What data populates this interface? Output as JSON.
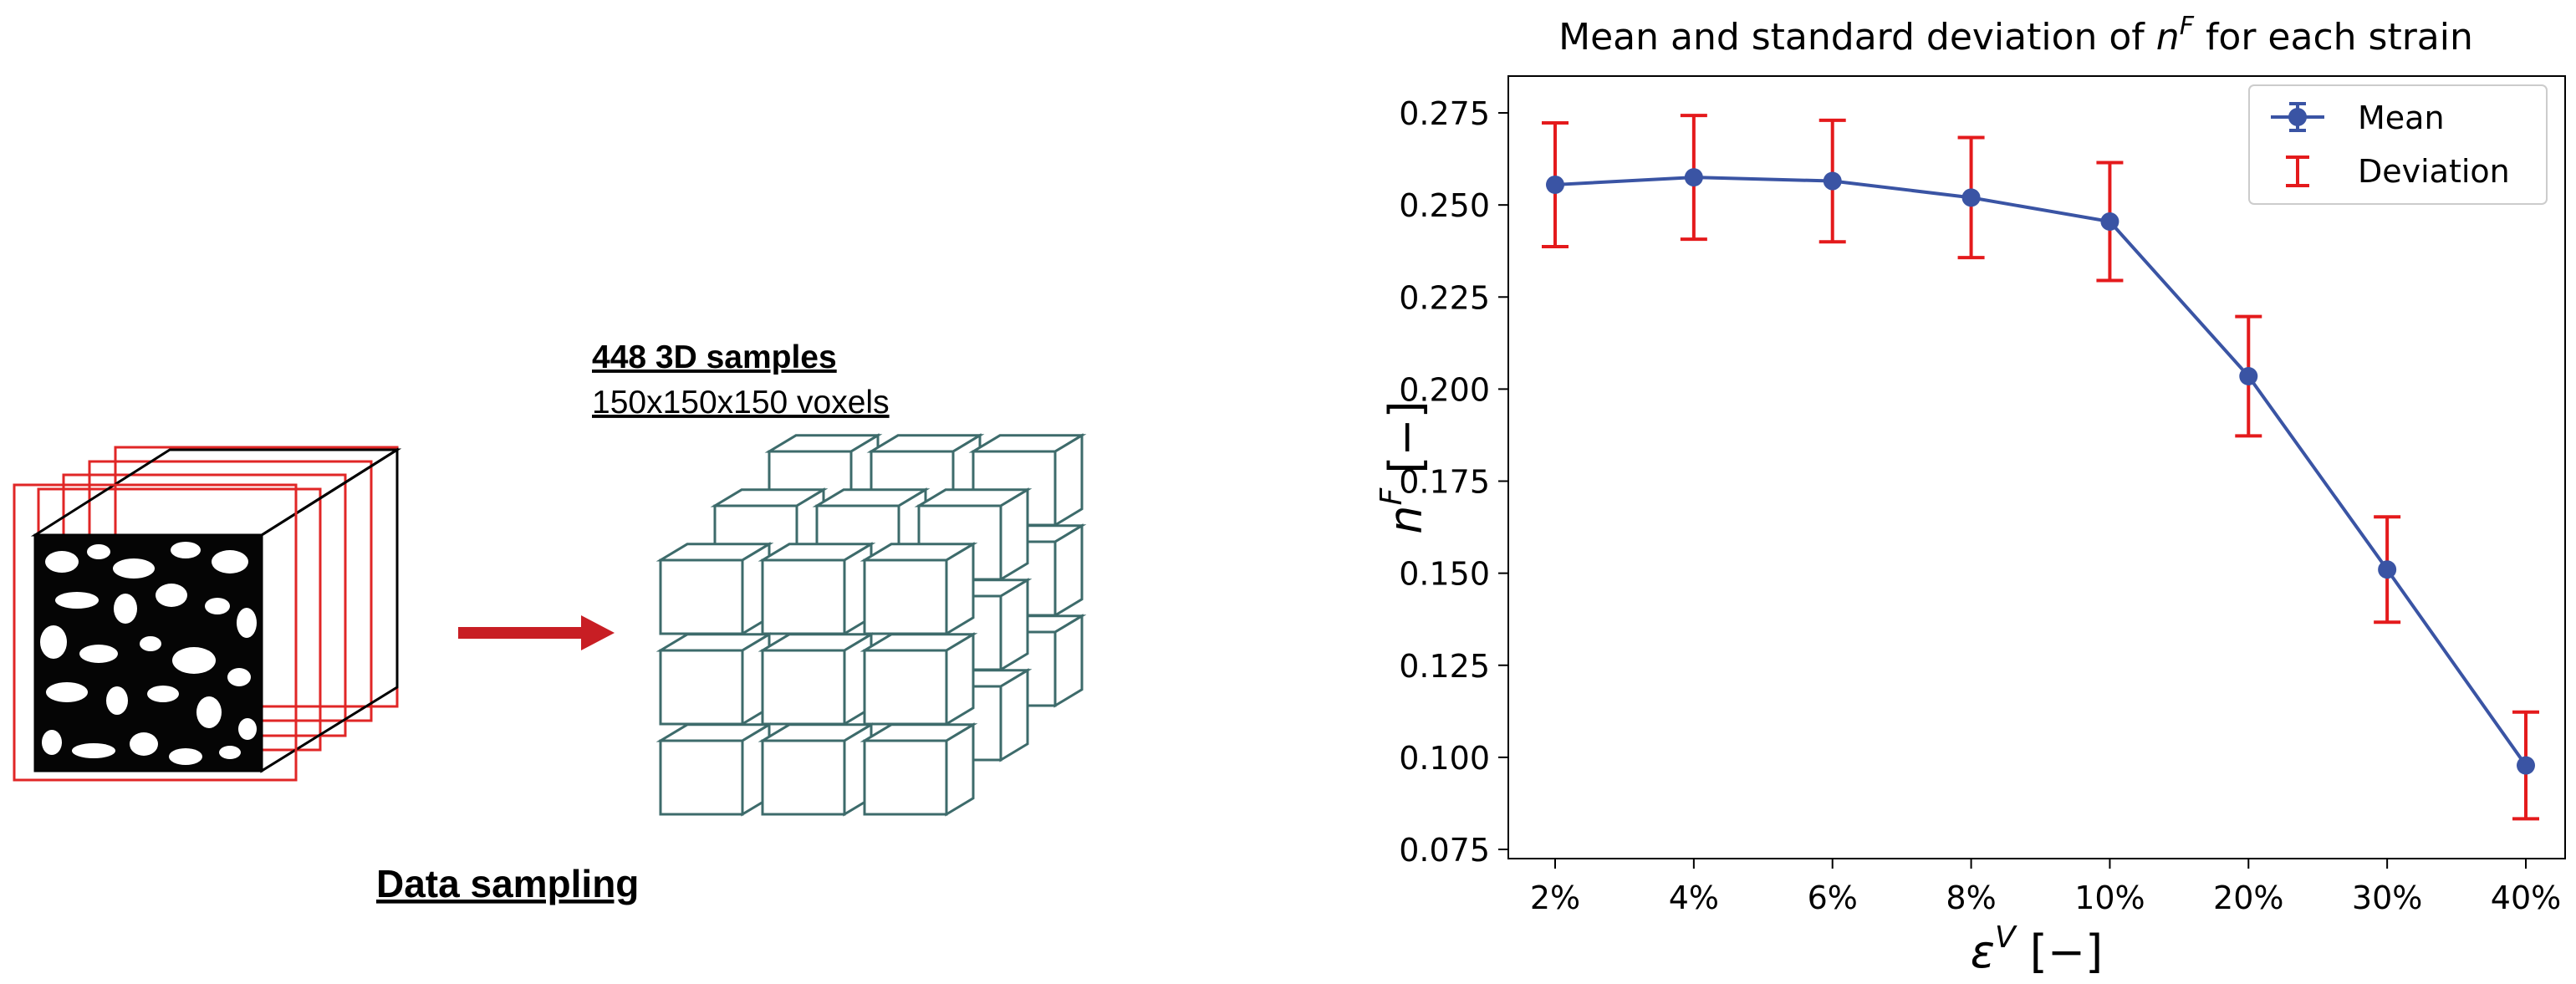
{
  "left": {
    "samples_title": "448 3D samples",
    "samples_subtitle": "150x150x150 voxels",
    "caption": "Data sampling"
  },
  "colors": {
    "frame_red": "#e02626",
    "arrow_red": "#c81e24",
    "cube_teal": "#3d6b6b",
    "series_blue": "#3a54a4",
    "error_red": "#e41a1c"
  },
  "chart_data": {
    "type": "line",
    "title_prefix": "Mean and standard deviation of ",
    "title_symbol": "n",
    "title_superscript": "F",
    "title_suffix": " for each strain",
    "xlabel_symbol": "ε",
    "xlabel_superscript": "V",
    "xlabel_unit": " [−]",
    "ylabel_symbol": "n",
    "ylabel_superscript": "F",
    "ylabel_unit": " [−]",
    "categories": [
      "2%",
      "4%",
      "6%",
      "8%",
      "10%",
      "20%",
      "30%",
      "40%"
    ],
    "series": [
      {
        "name": "Mean",
        "values": [
          0.2555,
          0.2575,
          0.2565,
          0.252,
          0.2455,
          0.2035,
          0.151,
          0.0978
        ]
      }
    ],
    "deviation": {
      "name": "Deviation",
      "values": [
        0.0168,
        0.0168,
        0.0165,
        0.0163,
        0.016,
        0.0162,
        0.0143,
        0.0145
      ]
    },
    "ylim": [
      0.0725,
      0.285
    ],
    "yticks": [
      0.075,
      0.1,
      0.125,
      0.15,
      0.175,
      0.2,
      0.225,
      0.25,
      0.275
    ],
    "ytick_labels": [
      "0.075",
      "0.100",
      "0.125",
      "0.150",
      "0.175",
      "0.200",
      "0.225",
      "0.250",
      "0.275"
    ],
    "legend_position": "top-right",
    "grid": false
  }
}
